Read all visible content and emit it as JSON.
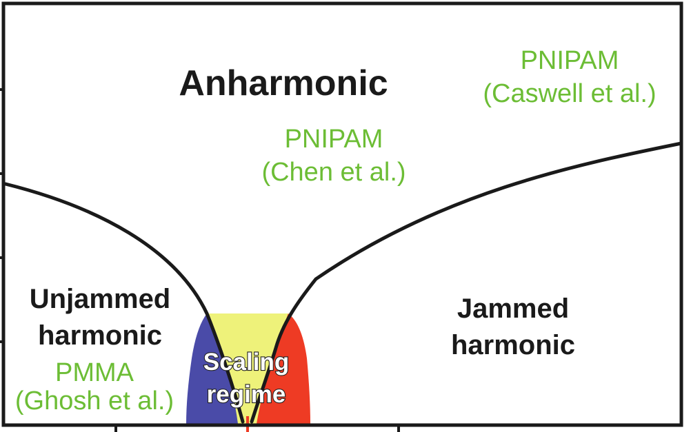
{
  "regions": {
    "anharmonic": "Anharmonic",
    "unjammed": [
      "Unjammed",
      "harmonic"
    ],
    "jammed": [
      "Jammed",
      "harmonic"
    ],
    "scaling": [
      "Scaling",
      "regime"
    ]
  },
  "materials": {
    "pnipam_caswell": [
      "PNIPAM",
      "(Caswell et al.)"
    ],
    "pnipam_chen": [
      "PNIPAM",
      "(Chen et al.)"
    ],
    "pmma_ghosh": [
      "PMMA",
      "(Ghosh et al.)"
    ]
  },
  "colors": {
    "left_scaling_fill": "#4a4ba8",
    "center_scaling_fill": "#eef27a",
    "right_scaling_fill": "#ee3b24",
    "material_text": "#6cbd35",
    "boundary_line": "#1a1a1a",
    "critical_marker": "#ee3b24"
  }
}
